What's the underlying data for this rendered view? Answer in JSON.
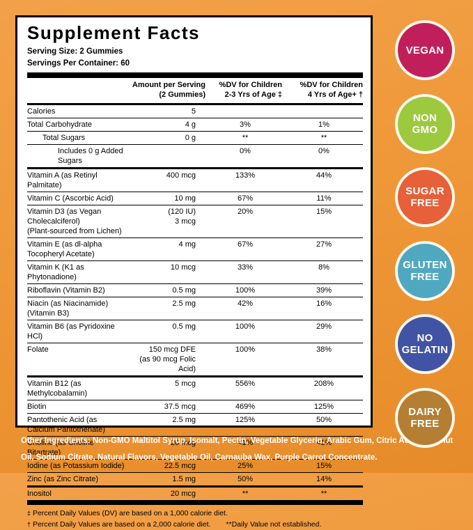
{
  "panel": {
    "title": "Supplement Facts",
    "serving_size": "Serving Size: 2 Gummies",
    "servings_per_container": "Servings Per Container: 60",
    "columns": {
      "amount1": "Amount per Serving",
      "amount2": "(2 Gummies)",
      "dv1a": "%DV for Children",
      "dv1b": "2-3 Yrs of Age ‡",
      "dv2a": "%DV for Children",
      "dv2b": "4 Yrs of Age+ †"
    },
    "rows": [
      {
        "name": "Calories",
        "amount": "5",
        "dv1": "",
        "dv2": "",
        "indent": 0,
        "sep": "thin"
      },
      {
        "name": "Total Carbohydrate",
        "amount": "4 g",
        "dv1": "3%",
        "dv2": "1%",
        "indent": 0,
        "sep": "thin"
      },
      {
        "name": "Total Sugars",
        "amount": "0 g",
        "dv1": "**",
        "dv2": "**",
        "indent": 1,
        "sep": "thin"
      },
      {
        "name": "Includes 0 g Added Sugars",
        "amount": "",
        "dv1": "0%",
        "dv2": "0%",
        "indent": 2,
        "sep": "medium"
      },
      {
        "name": "Vitamin A (as Retinyl Palmitate)",
        "amount": "400 mcg",
        "dv1": "133%",
        "dv2": "44%",
        "indent": 0,
        "sep": "thin"
      },
      {
        "name": "Vitamin C (Ascorbic Acid)",
        "amount": "10 mg",
        "dv1": "67%",
        "dv2": "11%",
        "indent": 0,
        "sep": "thin"
      },
      {
        "name": "Vitamin D3 (as Vegan Cholecalciferol)",
        "name2": "(Plant-sourced from Lichen)",
        "amount": "(120 IU)",
        "amount2": "3 mcg",
        "dv1": "20%",
        "dv2": "15%",
        "indent": 0,
        "sep": "thin"
      },
      {
        "name": "Vitamin E (as dl-alpha Tocopheryl Acetate)",
        "amount": "4 mg",
        "dv1": "67%",
        "dv2": "27%",
        "indent": 0,
        "sep": "thin"
      },
      {
        "name": "Vitamin K (K1 as Phytonadione)",
        "amount": "10 mcg",
        "dv1": "33%",
        "dv2": "8%",
        "indent": 0,
        "sep": "thin"
      },
      {
        "name": "Riboflavin (Vitamin B2)",
        "amount": "0.5 mg",
        "dv1": "100%",
        "dv2": "39%",
        "indent": 0,
        "sep": "thin"
      },
      {
        "name": "Niacin (as Niacinamide) (Vitamin B3)",
        "amount": "2.5 mg",
        "dv1": "42%",
        "dv2": "16%",
        "indent": 0,
        "sep": "thin"
      },
      {
        "name": "Vitamin B6 (as Pyridoxine HCl)",
        "amount": "0.5 mg",
        "dv1": "100%",
        "dv2": "29%",
        "indent": 0,
        "sep": "thin"
      },
      {
        "name": "Folate",
        "amount": "150 mcg DFE",
        "amount2": "(as 90 mcg Folic Acid)",
        "dv1": "100%",
        "dv2": "38%",
        "indent": 0,
        "sep": "medium"
      },
      {
        "name": "Vitamin B12 (as Methylcobalamin)",
        "amount": "5 mcg",
        "dv1": "556%",
        "dv2": "208%",
        "indent": 0,
        "sep": "thin"
      },
      {
        "name": "Biotin",
        "amount": "37.5 mcg",
        "dv1": "469%",
        "dv2": "125%",
        "indent": 0,
        "sep": "thin"
      },
      {
        "name": "Pantothenic Acid (as Calcium Pantothenate)",
        "amount": "2.5 mg",
        "dv1": "125%",
        "dv2": "50%",
        "indent": 0,
        "sep": "thin"
      },
      {
        "name": "Choline (as Choline Bitartrate)",
        "amount": "20 mcg",
        "dv1": "<1%",
        "dv2": "<1%",
        "indent": 0,
        "sep": "thin"
      },
      {
        "name": "Iodine (as Potassium Iodide)",
        "amount": "22.5 mcg",
        "dv1": "25%",
        "dv2": "15%",
        "indent": 0,
        "sep": "thin"
      },
      {
        "name": "Zinc (as Zinc Citrate)",
        "amount": "1.5 mg",
        "dv1": "50%",
        "dv2": "14%",
        "indent": 0,
        "sep": "medium"
      },
      {
        "name": "Inositol",
        "amount": "20 mcg",
        "dv1": "**",
        "dv2": "**",
        "indent": 0,
        "sep": "none"
      }
    ],
    "footnotes": {
      "sym1": "‡",
      "note1": "Percent Daily Values (DV) are based on a 1,000 calorie diet.",
      "sym2": "†",
      "note2": "Percent Daily Values are based on a 2,000 calorie diet.",
      "note3": "**Daily Value not established."
    }
  },
  "other_ingredients": "Other Ingredients: Non-GMO Maltitol Syrup, Isomalt, Pectin, Vegetable Glycerin, Arabic Gum, Citric Acid, Coconut Oil, Sodium Citrate, Natural Flavors, Vegetable Oil, Carnauba Wax, Purple Carrot Concentrate.",
  "badges": [
    {
      "id": "vegan",
      "lines": [
        "VEGAN"
      ],
      "color": "#C11F5B"
    },
    {
      "id": "non-gmo",
      "lines": [
        "NON",
        "GMO"
      ],
      "color": "#9DC93E"
    },
    {
      "id": "sugar-free",
      "lines": [
        "SUGAR",
        "FREE"
      ],
      "color": "#E6603A"
    },
    {
      "id": "gluten-free",
      "lines": [
        "GLUTEN",
        "FREE"
      ],
      "color": "#4FA8BF"
    },
    {
      "id": "no-gelatin",
      "lines": [
        "NO",
        "GELATIN"
      ],
      "color": "#4153A4"
    },
    {
      "id": "dairy-free",
      "lines": [
        "DAIRY",
        "FREE"
      ],
      "color": "#B47F33"
    }
  ],
  "colors": {
    "background_top": "#F2A14A",
    "background_bottom": "#E68B29",
    "panel_bg": "#FFFFFF",
    "panel_border": "#000000",
    "badge_ring": "#FCF8EC",
    "ingredients_text": "#FFFFFF"
  }
}
